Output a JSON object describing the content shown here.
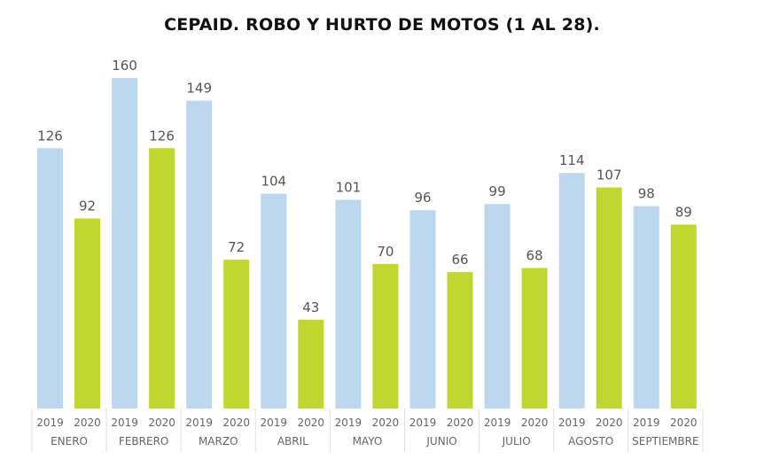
{
  "title": "CEPAID. ROBO Y HURTO DE MOTOS (1 AL 28).",
  "colors": {
    "series_2019": "#bdd7ee",
    "series_2020": "#bfd730",
    "separator": "#e0e0e0",
    "text": "#666666"
  },
  "chart_data": {
    "type": "bar",
    "title": "CEPAID. ROBO Y HURTO DE MOTOS (1 AL 28).",
    "xlabel": "",
    "ylabel": "",
    "ylim": [
      0,
      160
    ],
    "grid": false,
    "legend": "none",
    "categories": [
      "ENERO",
      "FEBRERO",
      "MARZO",
      "ABRIL",
      "MAYO",
      "JUNIO",
      "JULIO",
      "AGOSTO",
      "SEPTIEMBRE"
    ],
    "series": [
      {
        "name": "2019",
        "values": [
          126,
          160,
          149,
          104,
          101,
          96,
          99,
          114,
          98
        ]
      },
      {
        "name": "2020",
        "values": [
          92,
          126,
          72,
          43,
          70,
          66,
          68,
          107,
          89
        ]
      }
    ]
  }
}
